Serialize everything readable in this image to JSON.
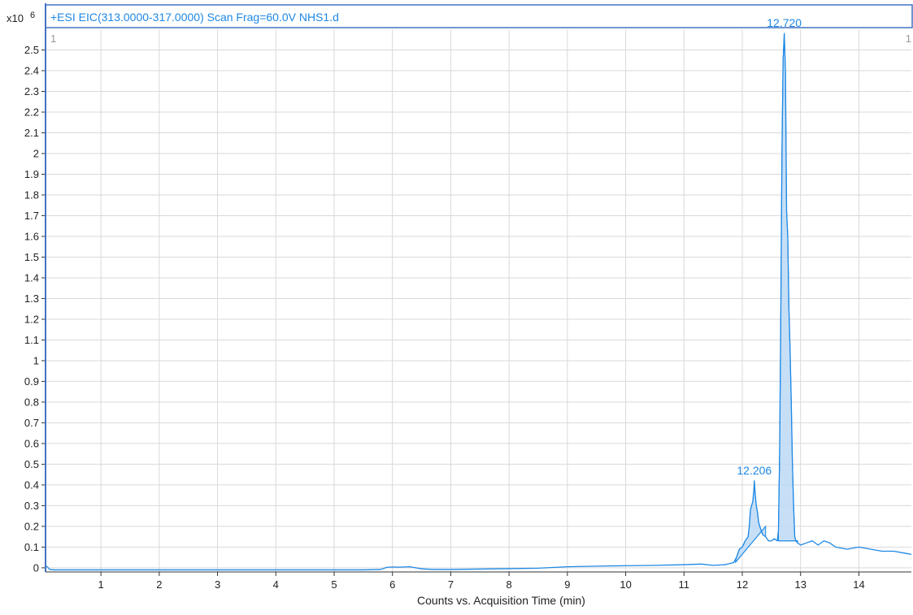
{
  "chart_data": {
    "type": "line",
    "title": "+ESI EIC(313.0000-317.0000) Scan Frag=60.0V NHS1.d",
    "y_multiplier_label": "x10",
    "y_multiplier_exponent": "6",
    "xlabel": "Counts vs. Acquisition Time (min)",
    "ylabel": "",
    "xlim": [
      0.05,
      14.9
    ],
    "ylim": [
      -0.02,
      2.6
    ],
    "x_ticks": [
      1,
      2,
      3,
      4,
      5,
      6,
      7,
      8,
      9,
      10,
      11,
      12,
      13,
      14
    ],
    "y_ticks": [
      0,
      0.1,
      0.2,
      0.3,
      0.4,
      0.5,
      0.6,
      0.7,
      0.8,
      0.9,
      1,
      1.1,
      1.2,
      1.3,
      1.4,
      1.5,
      1.6,
      1.7,
      1.8,
      1.9,
      2,
      2.1,
      2.2,
      2.3,
      2.4,
      2.5
    ],
    "grid": true,
    "line_color": "#1e88e5",
    "fill_color": "#bcd9f4",
    "corner_labels": {
      "left": "1",
      "right": "1"
    },
    "series": [
      {
        "x": [
          0.05,
          0.08,
          0.12,
          0.2,
          0.5,
          1,
          2,
          3,
          4,
          5,
          5.5,
          5.8,
          5.9,
          6.0,
          6.1,
          6.2,
          6.3,
          6.4,
          6.5,
          6.7,
          7.0,
          7.5,
          8.0,
          8.5,
          9.0,
          9.5,
          10.0,
          10.5,
          11.0,
          11.3,
          11.5,
          11.7,
          11.85,
          11.9,
          11.95,
          12.0,
          12.05,
          12.1,
          12.12,
          12.14,
          12.16,
          12.18,
          12.2,
          12.206,
          12.22,
          12.24,
          12.26,
          12.28,
          12.3,
          12.35,
          12.4,
          12.45,
          12.5,
          12.55,
          12.6,
          12.62,
          12.64,
          12.66,
          12.68,
          12.7,
          12.72,
          12.74,
          12.76,
          12.78,
          12.8,
          12.82,
          12.84,
          12.86,
          12.88,
          12.9,
          12.92,
          12.95,
          13.0,
          13.1,
          13.2,
          13.3,
          13.4,
          13.5,
          13.6,
          13.8,
          14.0,
          14.2,
          14.4,
          14.6,
          14.8,
          14.9
        ],
        "y": [
          0.01,
          0.005,
          -0.008,
          -0.01,
          -0.01,
          -0.01,
          -0.01,
          -0.01,
          -0.01,
          -0.01,
          -0.01,
          -0.008,
          0.002,
          0.004,
          0.003,
          0.004,
          0.005,
          0.0,
          -0.005,
          -0.008,
          -0.008,
          -0.006,
          -0.004,
          -0.002,
          0.005,
          0.008,
          0.01,
          0.012,
          0.015,
          0.018,
          0.012,
          0.015,
          0.025,
          0.05,
          0.09,
          0.1,
          0.13,
          0.15,
          0.2,
          0.28,
          0.3,
          0.32,
          0.38,
          0.42,
          0.36,
          0.3,
          0.27,
          0.22,
          0.2,
          0.16,
          0.15,
          0.13,
          0.13,
          0.14,
          0.13,
          0.18,
          0.55,
          1.2,
          2.0,
          2.45,
          2.58,
          2.4,
          1.72,
          1.6,
          1.25,
          1.05,
          0.8,
          0.5,
          0.3,
          0.15,
          0.13,
          0.12,
          0.11,
          0.12,
          0.13,
          0.11,
          0.13,
          0.12,
          0.1,
          0.09,
          0.1,
          0.09,
          0.08,
          0.08,
          0.07,
          0.065
        ]
      }
    ],
    "peaks": [
      {
        "rt": 12.206,
        "label": "12.206",
        "apex": 0.42,
        "start": 11.88,
        "end": 12.4,
        "base_start": 0.025,
        "base_end": 0.2
      },
      {
        "rt": 12.72,
        "label": "12.720",
        "apex": 2.58,
        "start": 12.62,
        "end": 12.95,
        "base_start": 0.13,
        "base_end": 0.13
      }
    ]
  }
}
